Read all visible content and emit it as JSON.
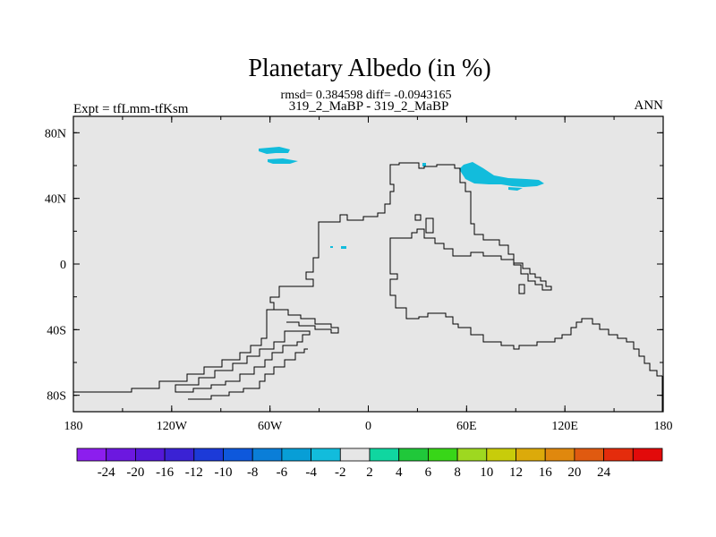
{
  "title": "Planetary Albedo (in %)",
  "stats_line": "rmsd= 0.384598 diff= -0.0943165",
  "case_line": "319_2_MaBP - 319_2_MaBP",
  "left_label": "Expt = tfLmm-tfKsm",
  "right_label": "ANN",
  "chart_data": {
    "type": "heatmap",
    "x_ticks": [
      "180",
      "120W",
      "60W",
      "0",
      "60E",
      "120E",
      "180"
    ],
    "y_ticks": [
      "80N",
      "40N",
      "0",
      "40S",
      "80S"
    ],
    "xlim": [
      -180,
      180
    ],
    "ylim": [
      -90,
      90
    ],
    "colorbar": {
      "labels": [
        "-24",
        "-20",
        "-16",
        "-12",
        "-10",
        "-8",
        "-6",
        "-4",
        "-2",
        "2",
        "4",
        "6",
        "8",
        "10",
        "12",
        "16",
        "20",
        "24"
      ],
      "colors": [
        "#8c1eee",
        "#6c18e0",
        "#5418d8",
        "#3a22d4",
        "#1c3ad8",
        "#0e58dc",
        "#0a7ed8",
        "#089ed6",
        "#12bcdc",
        "#e6e6e6",
        "#10d6a0",
        "#20c83a",
        "#38d618",
        "#9ed820",
        "#c8cc0a",
        "#dcaa0a",
        "#e0880e",
        "#e05a10",
        "#e42c0c",
        "#e20a0a"
      ]
    },
    "background_color": "#e6e6e6",
    "anomaly_color": "#12bcdc"
  }
}
